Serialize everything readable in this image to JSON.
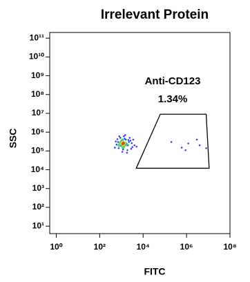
{
  "chart_data": {
    "type": "scatter",
    "title": "Irrelevant Protein",
    "x_label": "FITC",
    "y_label": "SSC",
    "x_log": true,
    "y_log": true,
    "xlim": [
      0.5,
      100000000
    ],
    "ylim": [
      4,
      200000000000
    ],
    "xticks": [
      {
        "value": 1,
        "label": "10⁰"
      },
      {
        "value": 100,
        "label": "10²"
      },
      {
        "value": 10000,
        "label": "10⁴"
      },
      {
        "value": 1000000,
        "label": "10⁶"
      },
      {
        "value": 100000000,
        "label": "10⁸"
      }
    ],
    "yticks": [
      {
        "value": 10,
        "label": "10¹"
      },
      {
        "value": 100,
        "label": "10²"
      },
      {
        "value": 1000,
        "label": "10³"
      },
      {
        "value": 10000,
        "label": "10⁴"
      },
      {
        "value": 100000,
        "label": "10⁵"
      },
      {
        "value": 1000000,
        "label": "10⁶"
      },
      {
        "value": 10000000,
        "label": "10⁷"
      },
      {
        "value": 100000000,
        "label": "10⁸"
      },
      {
        "value": 1000000000,
        "label": "10⁹"
      },
      {
        "value": 10000000000,
        "label": "10¹⁰"
      },
      {
        "value": 100000000000,
        "label": "10¹¹"
      }
    ],
    "series": [
      {
        "color": "#1f2cff",
        "x": [
          500,
          700,
          900,
          1200,
          1600,
          2000,
          2600,
          3200,
          600,
          800,
          1100,
          1500,
          1900,
          2400,
          3000,
          4000,
          550,
          750,
          1000,
          1400,
          1800,
          2200,
          2800,
          3500,
          650,
          950,
          1300,
          1700,
          2100,
          5000,
          200000,
          600000,
          1200000,
          4000000,
          8000000,
          3000000,
          900000
        ],
        "values": [
          150000,
          300000,
          500000,
          120000,
          400000,
          200000,
          350000,
          160000,
          220000,
          600000,
          90000,
          700000,
          110000,
          500000,
          260000,
          200000,
          320000,
          140000,
          280000,
          450000,
          80000,
          300000,
          130000,
          400000,
          420000,
          190000,
          600000,
          240000,
          380000,
          170000,
          300000,
          150000,
          250000,
          200000,
          140000,
          400000,
          110000
        ]
      },
      {
        "color": "#19d36a",
        "x": [
          800,
          1000,
          1200,
          1500,
          900,
          1300,
          1700,
          1100
        ],
        "values": [
          200000,
          300000,
          160000,
          250000,
          260000,
          200000,
          220000,
          360000
        ]
      },
      {
        "color": "#f5e11a",
        "x": [
          1000,
          1200,
          1100,
          1350
        ],
        "values": [
          240000,
          210000,
          280000,
          250000
        ]
      },
      {
        "color": "#ff2a1a",
        "x": [
          1150,
          1250
        ],
        "values": [
          240000,
          260000
        ]
      }
    ],
    "gate": {
      "label": "Anti-CD123",
      "value": 1.34,
      "value_label": "1.34%",
      "x": [
        4800,
        62000,
        8000000,
        11000000
      ],
      "y": [
        12000,
        9000000,
        9000000,
        12000
      ]
    }
  }
}
